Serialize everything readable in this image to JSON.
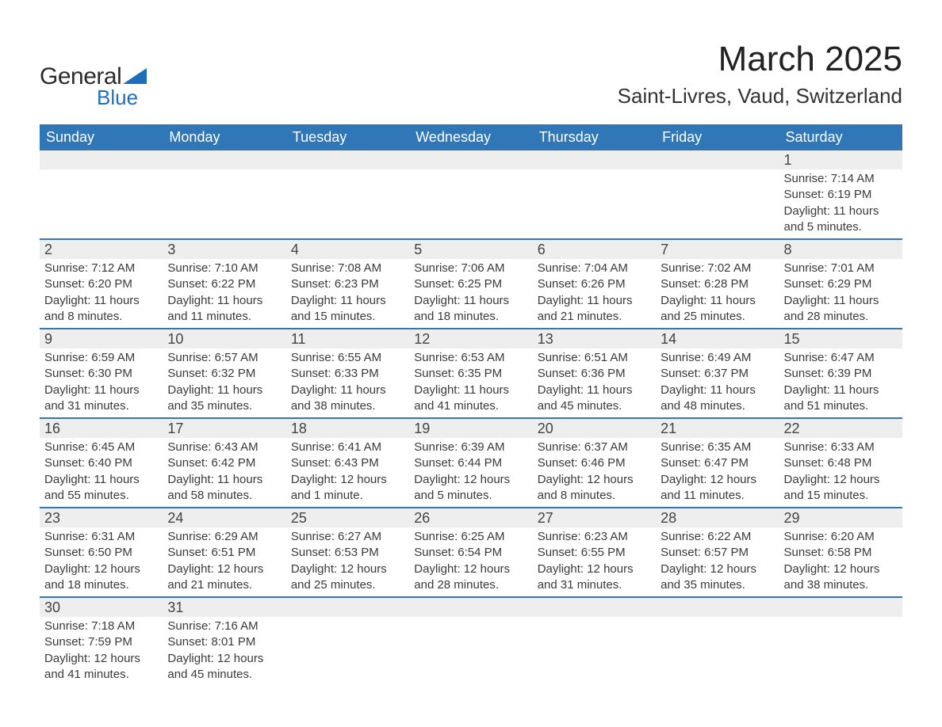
{
  "logo": {
    "text1": "General",
    "text2": "Blue",
    "triangle_color": "#1c6fb8"
  },
  "title": "March 2025",
  "location": "Saint-Livres, Vaud, Switzerland",
  "colors": {
    "header_bg": "#2f77b6",
    "header_fg": "#ffffff",
    "daynum_bg": "#eeeeee",
    "row_border": "#2f77b6",
    "text": "#3a3a3a"
  },
  "fonts": {
    "title_pt": 44,
    "location_pt": 26,
    "header_pt": 18,
    "daynum_pt": 18,
    "body_pt": 15
  },
  "day_labels": [
    "Sunday",
    "Monday",
    "Tuesday",
    "Wednesday",
    "Thursday",
    "Friday",
    "Saturday"
  ],
  "weeks": [
    [
      null,
      null,
      null,
      null,
      null,
      null,
      {
        "n": "1",
        "sunrise": "Sunrise: 7:14 AM",
        "sunset": "Sunset: 6:19 PM",
        "daylight": "Daylight: 11 hours and 5 minutes."
      }
    ],
    [
      {
        "n": "2",
        "sunrise": "Sunrise: 7:12 AM",
        "sunset": "Sunset: 6:20 PM",
        "daylight": "Daylight: 11 hours and 8 minutes."
      },
      {
        "n": "3",
        "sunrise": "Sunrise: 7:10 AM",
        "sunset": "Sunset: 6:22 PM",
        "daylight": "Daylight: 11 hours and 11 minutes."
      },
      {
        "n": "4",
        "sunrise": "Sunrise: 7:08 AM",
        "sunset": "Sunset: 6:23 PM",
        "daylight": "Daylight: 11 hours and 15 minutes."
      },
      {
        "n": "5",
        "sunrise": "Sunrise: 7:06 AM",
        "sunset": "Sunset: 6:25 PM",
        "daylight": "Daylight: 11 hours and 18 minutes."
      },
      {
        "n": "6",
        "sunrise": "Sunrise: 7:04 AM",
        "sunset": "Sunset: 6:26 PM",
        "daylight": "Daylight: 11 hours and 21 minutes."
      },
      {
        "n": "7",
        "sunrise": "Sunrise: 7:02 AM",
        "sunset": "Sunset: 6:28 PM",
        "daylight": "Daylight: 11 hours and 25 minutes."
      },
      {
        "n": "8",
        "sunrise": "Sunrise: 7:01 AM",
        "sunset": "Sunset: 6:29 PM",
        "daylight": "Daylight: 11 hours and 28 minutes."
      }
    ],
    [
      {
        "n": "9",
        "sunrise": "Sunrise: 6:59 AM",
        "sunset": "Sunset: 6:30 PM",
        "daylight": "Daylight: 11 hours and 31 minutes."
      },
      {
        "n": "10",
        "sunrise": "Sunrise: 6:57 AM",
        "sunset": "Sunset: 6:32 PM",
        "daylight": "Daylight: 11 hours and 35 minutes."
      },
      {
        "n": "11",
        "sunrise": "Sunrise: 6:55 AM",
        "sunset": "Sunset: 6:33 PM",
        "daylight": "Daylight: 11 hours and 38 minutes."
      },
      {
        "n": "12",
        "sunrise": "Sunrise: 6:53 AM",
        "sunset": "Sunset: 6:35 PM",
        "daylight": "Daylight: 11 hours and 41 minutes."
      },
      {
        "n": "13",
        "sunrise": "Sunrise: 6:51 AM",
        "sunset": "Sunset: 6:36 PM",
        "daylight": "Daylight: 11 hours and 45 minutes."
      },
      {
        "n": "14",
        "sunrise": "Sunrise: 6:49 AM",
        "sunset": "Sunset: 6:37 PM",
        "daylight": "Daylight: 11 hours and 48 minutes."
      },
      {
        "n": "15",
        "sunrise": "Sunrise: 6:47 AM",
        "sunset": "Sunset: 6:39 PM",
        "daylight": "Daylight: 11 hours and 51 minutes."
      }
    ],
    [
      {
        "n": "16",
        "sunrise": "Sunrise: 6:45 AM",
        "sunset": "Sunset: 6:40 PM",
        "daylight": "Daylight: 11 hours and 55 minutes."
      },
      {
        "n": "17",
        "sunrise": "Sunrise: 6:43 AM",
        "sunset": "Sunset: 6:42 PM",
        "daylight": "Daylight: 11 hours and 58 minutes."
      },
      {
        "n": "18",
        "sunrise": "Sunrise: 6:41 AM",
        "sunset": "Sunset: 6:43 PM",
        "daylight": "Daylight: 12 hours and 1 minute."
      },
      {
        "n": "19",
        "sunrise": "Sunrise: 6:39 AM",
        "sunset": "Sunset: 6:44 PM",
        "daylight": "Daylight: 12 hours and 5 minutes."
      },
      {
        "n": "20",
        "sunrise": "Sunrise: 6:37 AM",
        "sunset": "Sunset: 6:46 PM",
        "daylight": "Daylight: 12 hours and 8 minutes."
      },
      {
        "n": "21",
        "sunrise": "Sunrise: 6:35 AM",
        "sunset": "Sunset: 6:47 PM",
        "daylight": "Daylight: 12 hours and 11 minutes."
      },
      {
        "n": "22",
        "sunrise": "Sunrise: 6:33 AM",
        "sunset": "Sunset: 6:48 PM",
        "daylight": "Daylight: 12 hours and 15 minutes."
      }
    ],
    [
      {
        "n": "23",
        "sunrise": "Sunrise: 6:31 AM",
        "sunset": "Sunset: 6:50 PM",
        "daylight": "Daylight: 12 hours and 18 minutes."
      },
      {
        "n": "24",
        "sunrise": "Sunrise: 6:29 AM",
        "sunset": "Sunset: 6:51 PM",
        "daylight": "Daylight: 12 hours and 21 minutes."
      },
      {
        "n": "25",
        "sunrise": "Sunrise: 6:27 AM",
        "sunset": "Sunset: 6:53 PM",
        "daylight": "Daylight: 12 hours and 25 minutes."
      },
      {
        "n": "26",
        "sunrise": "Sunrise: 6:25 AM",
        "sunset": "Sunset: 6:54 PM",
        "daylight": "Daylight: 12 hours and 28 minutes."
      },
      {
        "n": "27",
        "sunrise": "Sunrise: 6:23 AM",
        "sunset": "Sunset: 6:55 PM",
        "daylight": "Daylight: 12 hours and 31 minutes."
      },
      {
        "n": "28",
        "sunrise": "Sunrise: 6:22 AM",
        "sunset": "Sunset: 6:57 PM",
        "daylight": "Daylight: 12 hours and 35 minutes."
      },
      {
        "n": "29",
        "sunrise": "Sunrise: 6:20 AM",
        "sunset": "Sunset: 6:58 PM",
        "daylight": "Daylight: 12 hours and 38 minutes."
      }
    ],
    [
      {
        "n": "30",
        "sunrise": "Sunrise: 7:18 AM",
        "sunset": "Sunset: 7:59 PM",
        "daylight": "Daylight: 12 hours and 41 minutes."
      },
      {
        "n": "31",
        "sunrise": "Sunrise: 7:16 AM",
        "sunset": "Sunset: 8:01 PM",
        "daylight": "Daylight: 12 hours and 45 minutes."
      },
      null,
      null,
      null,
      null,
      null
    ]
  ]
}
